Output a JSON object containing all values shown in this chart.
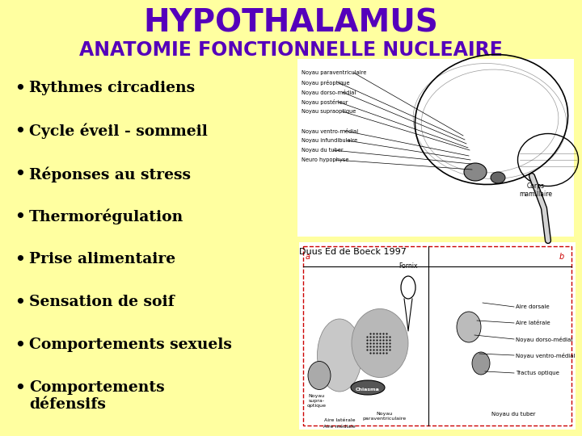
{
  "bg_color": "#FFFFA0",
  "title": "HYPOTHALAMUS",
  "subtitle": "ANATOMIE FONCTIONNELLE NUCLEAIRE",
  "title_color": "#5500BB",
  "subtitle_color": "#5500BB",
  "title_fontsize": 28,
  "subtitle_fontsize": 17,
  "bullet_items": [
    "Rythmes circadiens",
    "Cycle éveil - sommeil",
    "Réponses au stress",
    "Thermorégulation",
    "Prise alimentaire",
    "Sensation de soif",
    "Comportements sexuels",
    "Comportements\ndéfensifs"
  ],
  "bullet_fontsize": 13.5,
  "bullet_color": "#000000",
  "caption": "Duus Ed de Boeck 1997",
  "caption_fontsize": 8,
  "caption_color": "#000000"
}
